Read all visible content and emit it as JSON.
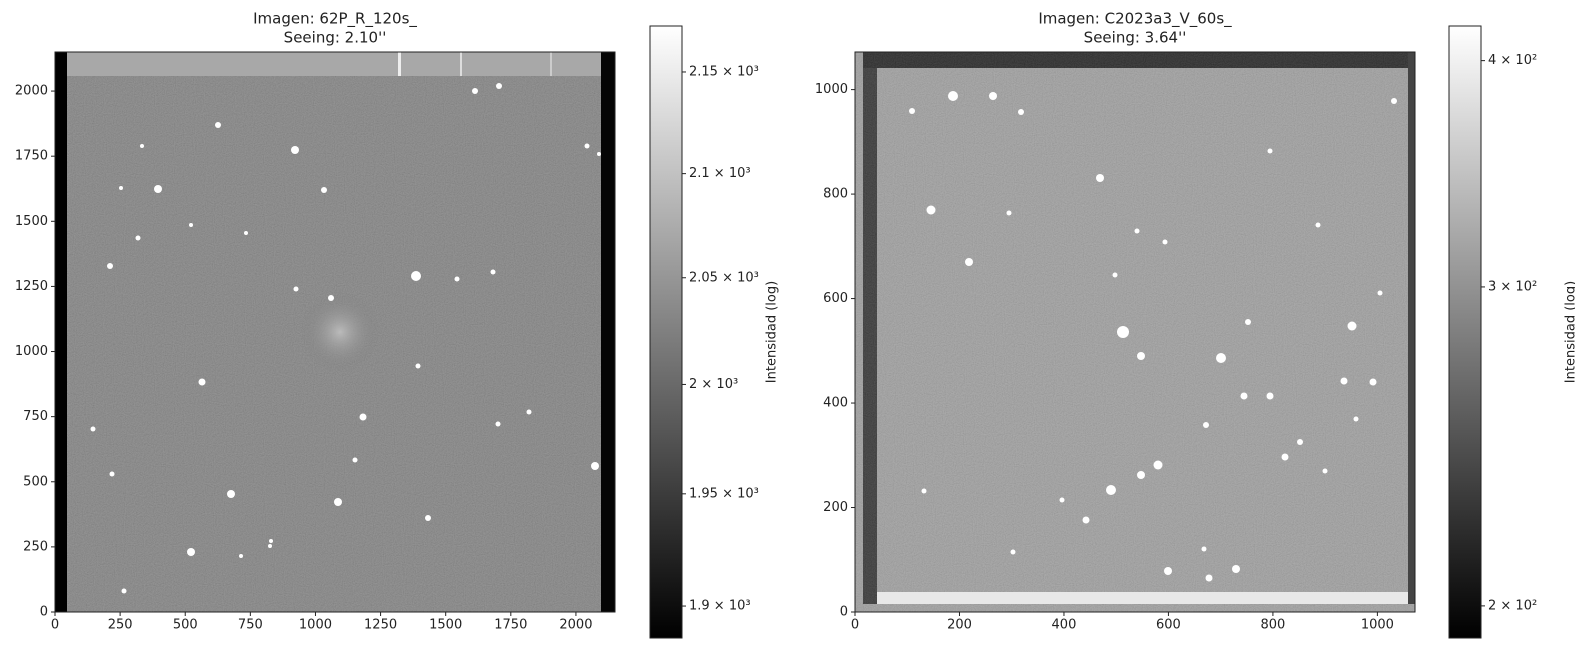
{
  "chart_data": [
    {
      "type": "image",
      "title": "Imagen: 62P_R_120s_",
      "subtitle": "Seeing: 2.10''",
      "xlim": [
        0,
        2150
      ],
      "ylim": [
        0,
        2150
      ],
      "xticks": [
        0,
        250,
        500,
        750,
        1000,
        1250,
        1500,
        1750,
        2000
      ],
      "yticks": [
        0,
        250,
        500,
        750,
        1000,
        1250,
        1500,
        1750,
        2000
      ],
      "colorbar": {
        "label": "Intensidad (log)",
        "scale": "log",
        "lim": [
          1886,
          2173
        ],
        "ticks": [
          {
            "value": 1900,
            "label": "1.9 × 10³"
          },
          {
            "value": 1950,
            "label": "1.95 × 10³"
          },
          {
            "value": 2000,
            "label": "2 × 10³"
          },
          {
            "value": 2050,
            "label": "2.05 × 10³"
          },
          {
            "value": 2100,
            "label": "2.1 × 10³"
          },
          {
            "value": 2150,
            "label": "2.15 × 10³"
          }
        ]
      }
    },
    {
      "type": "image",
      "title": "Imagen: C2023a3_V_60s_",
      "subtitle": "Seeing: 3.64''",
      "xlim": [
        0,
        1072
      ],
      "ylim": [
        0,
        1072
      ],
      "xticks": [
        0,
        200,
        400,
        600,
        800,
        1000
      ],
      "yticks": [
        0,
        200,
        400,
        600,
        800,
        1000
      ],
      "colorbar": {
        "label": "Intensidad (log)",
        "scale": "log",
        "lim": [
          192,
          418
        ],
        "ticks": [
          {
            "value": 200,
            "label": "2 × 10²"
          },
          {
            "value": 300,
            "label": "3 × 10²"
          },
          {
            "value": 400,
            "label": "4 × 10²"
          }
        ]
      }
    }
  ]
}
